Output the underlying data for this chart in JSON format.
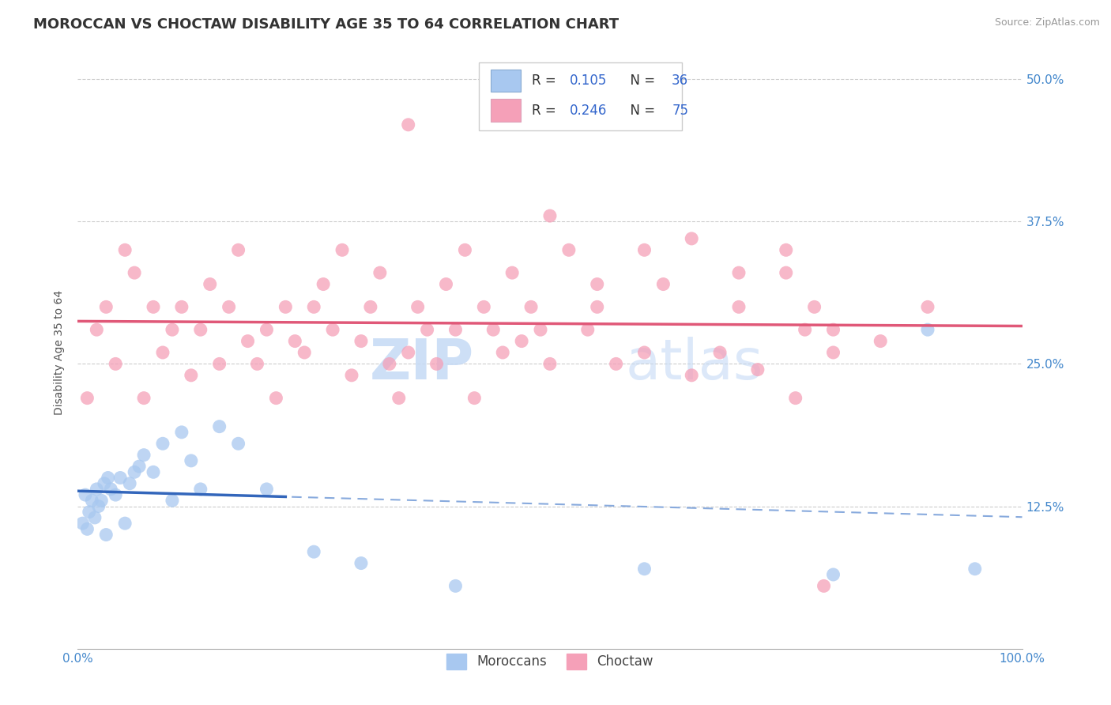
{
  "title": "MOROCCAN VS CHOCTAW DISABILITY AGE 35 TO 64 CORRELATION CHART",
  "source": "Source: ZipAtlas.com",
  "ylabel": "Disability Age 35 to 64",
  "legend_moroccan_R": "0.105",
  "legend_moroccan_N": "36",
  "legend_choctaw_R": "0.246",
  "legend_choctaw_N": "75",
  "moroccan_color": "#a8c8f0",
  "choctaw_color": "#f5a0b8",
  "moroccan_line_color": "#3366bb",
  "choctaw_line_color": "#e05878",
  "moroccan_dash_color": "#88aadd",
  "xlim": [
    0,
    100
  ],
  "ylim": [
    0,
    52
  ],
  "yticks": [
    12.5,
    25.0,
    37.5,
    50.0
  ],
  "ytick_labels": [
    "12.5%",
    "25.0%",
    "37.5%",
    "50.0%"
  ],
  "xticks": [
    0,
    100
  ],
  "xtick_labels": [
    "0.0%",
    "100.0%"
  ],
  "grid_color": "#cccccc",
  "bg_color": "#ffffff",
  "title_color": "#333333",
  "axis_label_color": "#4488cc",
  "title_fontsize": 13,
  "label_fontsize": 10,
  "tick_fontsize": 11,
  "moroccan_x": [
    0.5,
    0.8,
    1.0,
    1.2,
    1.5,
    1.8,
    2.0,
    2.2,
    2.5,
    2.8,
    3.0,
    3.2,
    3.5,
    4.0,
    4.5,
    5.0,
    5.5,
    6.0,
    6.5,
    7.0,
    8.0,
    9.0,
    10.0,
    11.0,
    12.0,
    13.0,
    15.0,
    17.0,
    20.0,
    25.0,
    30.0,
    40.0,
    60.0,
    80.0,
    90.0,
    95.0
  ],
  "moroccan_y": [
    11.0,
    13.5,
    10.5,
    12.0,
    13.0,
    11.5,
    14.0,
    12.5,
    13.0,
    14.5,
    10.0,
    15.0,
    14.0,
    13.5,
    15.0,
    11.0,
    14.5,
    15.5,
    16.0,
    17.0,
    15.5,
    18.0,
    13.0,
    19.0,
    16.5,
    14.0,
    19.5,
    18.0,
    14.0,
    8.5,
    7.5,
    5.5,
    7.0,
    6.5,
    28.0,
    7.0
  ],
  "choctaw_x": [
    1.0,
    2.0,
    3.0,
    4.0,
    5.0,
    6.0,
    7.0,
    8.0,
    9.0,
    10.0,
    11.0,
    12.0,
    13.0,
    14.0,
    15.0,
    16.0,
    17.0,
    18.0,
    19.0,
    20.0,
    21.0,
    22.0,
    23.0,
    24.0,
    25.0,
    26.0,
    27.0,
    28.0,
    29.0,
    30.0,
    31.0,
    32.0,
    33.0,
    34.0,
    35.0,
    36.0,
    37.0,
    38.0,
    39.0,
    40.0,
    41.0,
    42.0,
    43.0,
    44.0,
    45.0,
    46.0,
    47.0,
    48.0,
    49.0,
    50.0,
    52.0,
    54.0,
    55.0,
    57.0,
    60.0,
    62.0,
    65.0,
    68.0,
    70.0,
    72.0,
    75.0,
    76.0,
    77.0,
    78.0,
    79.0,
    80.0,
    50.0,
    55.0,
    60.0,
    65.0,
    70.0,
    75.0,
    80.0,
    85.0,
    90.0
  ],
  "choctaw_y": [
    22.0,
    28.0,
    30.0,
    25.0,
    35.0,
    33.0,
    22.0,
    30.0,
    26.0,
    28.0,
    30.0,
    24.0,
    28.0,
    32.0,
    25.0,
    30.0,
    35.0,
    27.0,
    25.0,
    28.0,
    22.0,
    30.0,
    27.0,
    26.0,
    30.0,
    32.0,
    28.0,
    35.0,
    24.0,
    27.0,
    30.0,
    33.0,
    25.0,
    22.0,
    26.0,
    30.0,
    28.0,
    25.0,
    32.0,
    28.0,
    35.0,
    22.0,
    30.0,
    28.0,
    26.0,
    33.0,
    27.0,
    30.0,
    28.0,
    25.0,
    35.0,
    28.0,
    30.0,
    25.0,
    26.0,
    32.0,
    24.0,
    26.0,
    33.0,
    24.5,
    35.0,
    22.0,
    28.0,
    30.0,
    5.5,
    26.0,
    38.0,
    32.0,
    35.0,
    36.0,
    30.0,
    33.0,
    28.0,
    27.0,
    30.0
  ],
  "choctaw_outlier_x": 35.0,
  "choctaw_outlier_y": 46.0,
  "watermark_text": "ZIPatlas",
  "watermark_color": "#c5daf5",
  "bottom_legend_labels": [
    "Moroccans",
    "Choctaw"
  ]
}
